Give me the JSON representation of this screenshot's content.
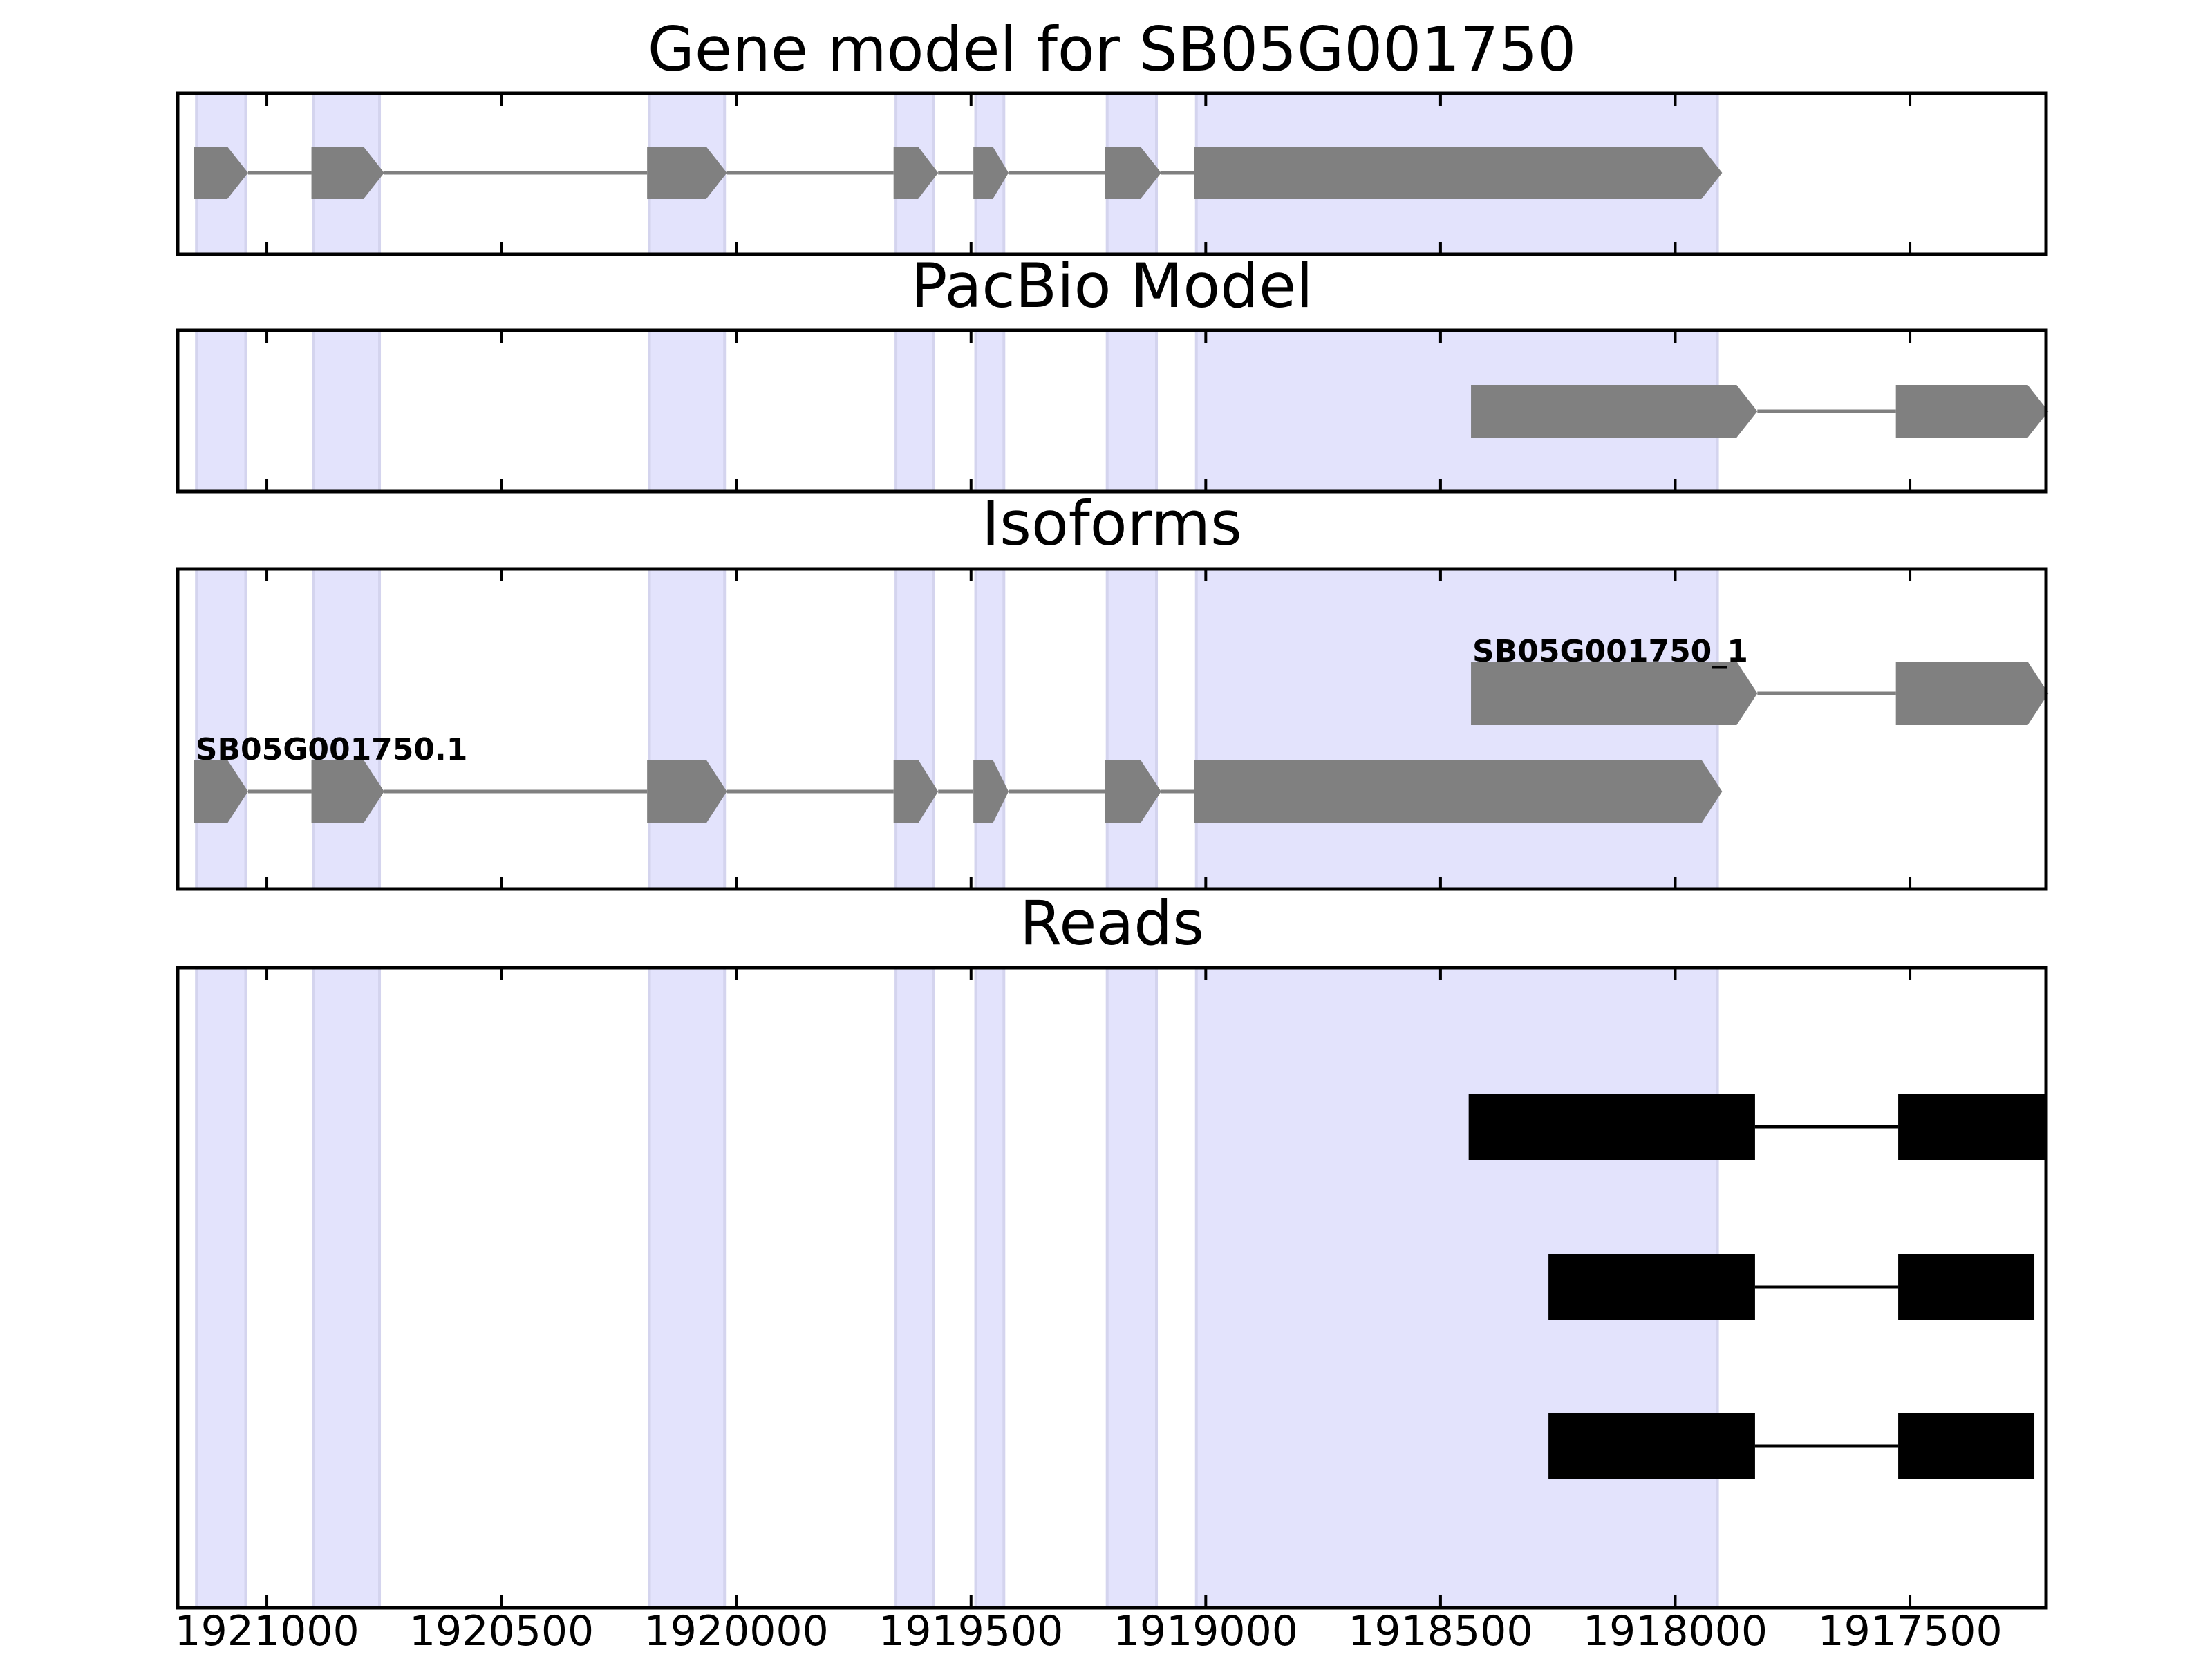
{
  "chart_data": {
    "type": "gene-track",
    "x_axis": {
      "reversed": true,
      "range": [
        1921190,
        1917210
      ],
      "ticks": [
        1921000,
        1920500,
        1920000,
        1919500,
        1919000,
        1918500,
        1918000,
        1917500
      ],
      "tick_labels": [
        "1921000",
        "1920500",
        "1920000",
        "1919500",
        "1919000",
        "1918500",
        "1918000",
        "1917500"
      ]
    },
    "exon_shading": {
      "color": "#e3e3fc",
      "regions": [
        [
          1921150,
          1921045
        ],
        [
          1920900,
          1920760
        ],
        [
          1920185,
          1920025
        ],
        [
          1919660,
          1919580
        ],
        [
          1919490,
          1919430
        ],
        [
          1919210,
          1919105
        ],
        [
          1919020,
          1917910
        ]
      ]
    },
    "panels": [
      {
        "title": "Gene model for SB05G001750",
        "kind": "model",
        "rows": [
          {
            "label": "",
            "color": "#808080",
            "strand": "-",
            "exons": [
              [
                1921155,
                1921040
              ],
              [
                1920905,
                1920750
              ],
              [
                1920190,
                1920020
              ],
              [
                1919665,
                1919570
              ],
              [
                1919495,
                1919420
              ],
              [
                1919215,
                1919095
              ],
              [
                1919025,
                1917900
              ]
            ]
          }
        ]
      },
      {
        "title": "PacBio Model",
        "kind": "model",
        "rows": [
          {
            "label": "",
            "color": "#808080",
            "strand": "-",
            "exons": [
              [
                1918435,
                1917825
              ],
              [
                1917530,
                1917205
              ]
            ]
          }
        ]
      },
      {
        "title": "Isoforms",
        "kind": "model",
        "rows": [
          {
            "label": "SB05G001750_1",
            "color": "#808080",
            "strand": "-",
            "exons": [
              [
                1918435,
                1917825
              ],
              [
                1917530,
                1917205
              ]
            ]
          },
          {
            "label": "SB05G001750.1",
            "color": "#808080",
            "strand": "-",
            "exons": [
              [
                1921155,
                1921040
              ],
              [
                1920905,
                1920750
              ],
              [
                1920190,
                1920020
              ],
              [
                1919665,
                1919570
              ],
              [
                1919495,
                1919420
              ],
              [
                1919215,
                1919095
              ],
              [
                1919025,
                1917900
              ]
            ]
          }
        ]
      },
      {
        "title": "Reads",
        "kind": "reads",
        "rows": [
          {
            "label": "",
            "color": "#000000",
            "exons": [
              [
                1918440,
                1917830
              ],
              [
                1917525,
                1917210
              ]
            ]
          },
          {
            "label": "",
            "color": "#000000",
            "exons": [
              [
                1918270,
                1917830
              ],
              [
                1917525,
                1917235
              ]
            ]
          },
          {
            "label": "",
            "color": "#000000",
            "exons": [
              [
                1918270,
                1917830
              ],
              [
                1917525,
                1917235
              ]
            ]
          }
        ]
      }
    ]
  }
}
